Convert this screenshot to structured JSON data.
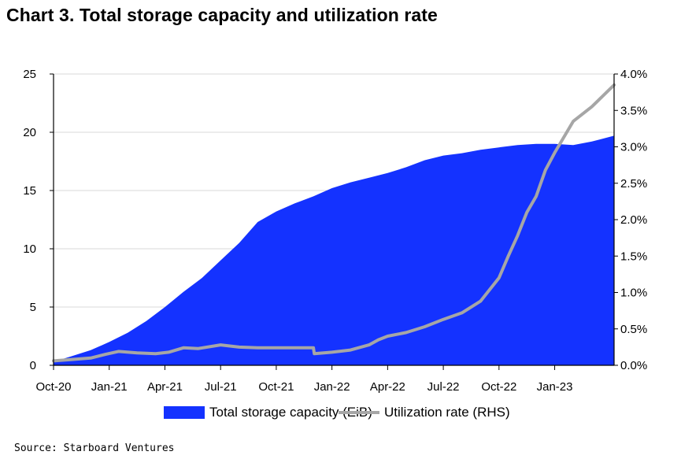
{
  "chart_data": {
    "type": "area",
    "title": "Chart 3. Total storage capacity and utilization rate",
    "xlabel": "",
    "ylabel": "",
    "x_tick_labels": [
      "Oct-20",
      "Jan-21",
      "Apr-21",
      "Jul-21",
      "Oct-21",
      "Jan-22",
      "Apr-22",
      "Jul-22",
      "Oct-22",
      "Jan-23"
    ],
    "x_tick_index": [
      0,
      3,
      6,
      9,
      12,
      15,
      18,
      21,
      24,
      27
    ],
    "x_range": [
      0,
      30.2
    ],
    "y_left_ticks": [
      "0",
      "5",
      "10",
      "15",
      "20",
      "25"
    ],
    "y_left_range": [
      0,
      25
    ],
    "y_right_ticks": [
      "0.0%",
      "0.5%",
      "1.0%",
      "1.5%",
      "2.0%",
      "2.5%",
      "3.0%",
      "3.5%",
      "4.0%"
    ],
    "y_right_range": [
      0,
      4
    ],
    "grid": "horizontal",
    "legend_position": "bottom",
    "series": [
      {
        "name": "Total storage capacity (EiB)",
        "type": "area",
        "axis": "left",
        "color": "#1432ff",
        "x": [
          0,
          1,
          2,
          3,
          4,
          5,
          6,
          7,
          8,
          9,
          10,
          11,
          12,
          13,
          14,
          15,
          16,
          17,
          18,
          19,
          20,
          21,
          22,
          23,
          24,
          25,
          26,
          27,
          28,
          29,
          30.2
        ],
        "values": [
          0.3,
          0.8,
          1.3,
          2.0,
          2.8,
          3.8,
          5.0,
          6.3,
          7.5,
          9.0,
          10.5,
          12.3,
          13.2,
          13.9,
          14.5,
          15.2,
          15.7,
          16.1,
          16.5,
          17.0,
          17.6,
          18.0,
          18.2,
          18.5,
          18.7,
          18.9,
          19.0,
          19.0,
          18.9,
          19.2,
          19.7
        ]
      },
      {
        "name": "Utilization rate (RHS)",
        "type": "line",
        "axis": "right",
        "color": "#a6a6a6",
        "x": [
          0,
          1,
          2,
          2.8,
          3.5,
          4.5,
          5.5,
          6.2,
          7,
          7.8,
          9,
          10,
          11,
          12,
          13,
          14,
          14.05,
          15,
          16,
          17,
          17.5,
          18,
          19,
          20,
          21,
          22,
          23,
          24,
          24.5,
          25,
          25.5,
          26,
          26.5,
          27,
          28,
          29,
          30.2
        ],
        "values": [
          0.06,
          0.08,
          0.1,
          0.15,
          0.19,
          0.17,
          0.16,
          0.18,
          0.24,
          0.23,
          0.28,
          0.25,
          0.24,
          0.24,
          0.24,
          0.24,
          0.16,
          0.18,
          0.21,
          0.28,
          0.35,
          0.4,
          0.45,
          0.53,
          0.63,
          0.72,
          0.88,
          1.2,
          1.5,
          1.78,
          2.1,
          2.32,
          2.68,
          2.92,
          3.35,
          3.55,
          3.85
        ]
      }
    ]
  },
  "source": "Source: Starboard Ventures"
}
